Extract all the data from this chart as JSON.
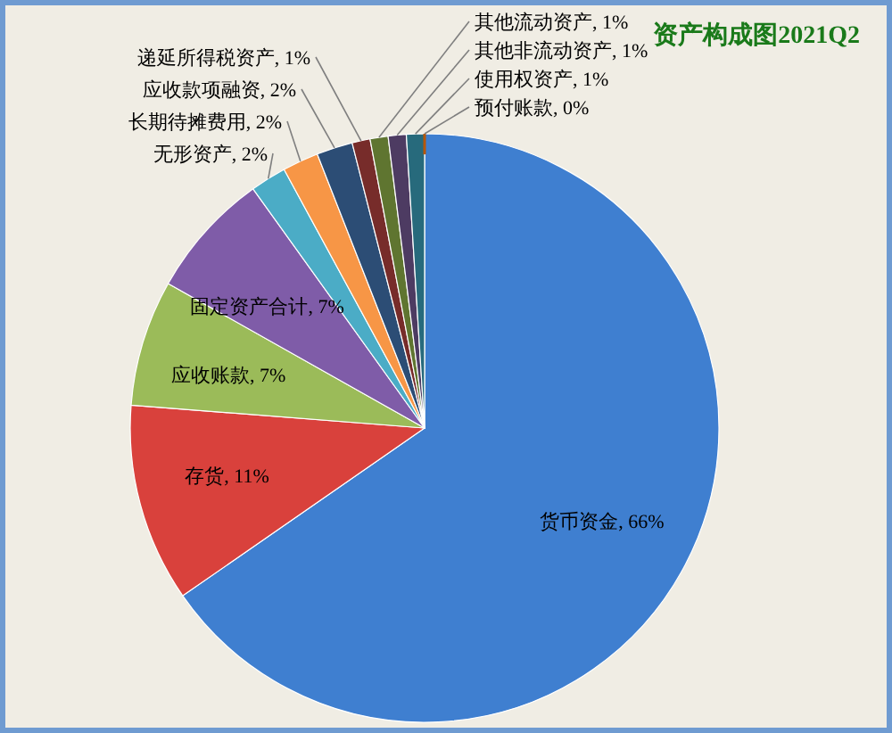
{
  "chart_data": {
    "type": "pie",
    "title": "资产构成图2021Q2",
    "categories": [
      "货币资金",
      "存货",
      "应收账款",
      "固定资产合计",
      "无形资产",
      "长期待摊费用",
      "应收款项融资",
      "递延所得税资产",
      "其他流动资产",
      "其他非流动资产",
      "使用权资产",
      "预付账款"
    ],
    "values": [
      66,
      11,
      7,
      7,
      2,
      2,
      2,
      1,
      1,
      1,
      1,
      0
    ],
    "colors": [
      "#3f7fd0",
      "#d9413c",
      "#9bbb59",
      "#7f5ca8",
      "#4bacc6",
      "#f79646",
      "#2c4d75",
      "#772c2a",
      "#5f7530",
      "#4d3b62",
      "#276a7c",
      "#b65708"
    ],
    "value_labels": [
      ", 66%",
      ", 11%",
      ", 7%",
      ", 7%",
      ", 2%",
      ", 2%",
      ", 2%",
      ", 1%",
      ", 1%",
      ", 1%",
      ", 1%",
      ", 0%"
    ]
  }
}
